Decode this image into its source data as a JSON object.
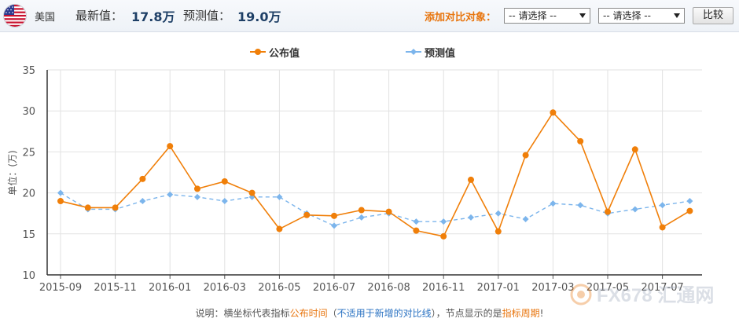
{
  "header": {
    "country": "美国",
    "latest_label": "最新值：",
    "latest_value": "17.8万",
    "forecast_label": "预测值：",
    "forecast_value": "19.0万",
    "compare_label": "添加对比对象：",
    "select1": "-- 请选择 --",
    "select2": "-- 请选择 --",
    "compare_button": "比较"
  },
  "watermark": "FX678 汇通网",
  "footnote": {
    "p1": "说明：横坐标代表指标",
    "p2": "公布时间",
    "p3": "（",
    "p4": "不适用于新增的对比线",
    "p5": "），节点显示的是",
    "p6": "指标周期",
    "p7": "!"
  },
  "colors": {
    "actual": "#f07f09",
    "forecast": "#7cb5ec",
    "accent": "#e8750e"
  },
  "chart_data": {
    "type": "line",
    "ylabel": "单位：(万)",
    "ylim": [
      10,
      35
    ],
    "yticks": [
      10,
      15,
      20,
      25,
      30,
      35
    ],
    "grid": true,
    "legend_position": "top-center",
    "x_tick_labels": [
      "2015-09",
      "2015-11",
      "2016-01",
      "2016-03",
      "2016-05",
      "2016-07",
      "2016-08",
      "2016-11",
      "2017-01",
      "2017-03",
      "2017-05",
      "2017-07"
    ],
    "series": [
      {
        "name": "公布值",
        "style": "solid",
        "marker": "circle",
        "values": [
          19.0,
          18.2,
          18.2,
          21.7,
          25.7,
          20.5,
          21.4,
          20.0,
          15.6,
          17.3,
          17.2,
          17.9,
          17.7,
          15.4,
          14.7,
          21.6,
          15.3,
          24.6,
          29.8,
          26.3,
          17.7,
          25.3,
          15.8,
          17.8
        ]
      },
      {
        "name": "预测值",
        "style": "dashed",
        "marker": "diamond",
        "values": [
          20.0,
          18.0,
          18.0,
          19.0,
          19.8,
          19.5,
          19.0,
          19.5,
          19.5,
          17.5,
          16.0,
          17.0,
          17.5,
          16.5,
          16.5,
          17.0,
          17.5,
          16.8,
          18.7,
          18.5,
          17.5,
          18.0,
          18.5,
          19.0
        ]
      }
    ]
  }
}
